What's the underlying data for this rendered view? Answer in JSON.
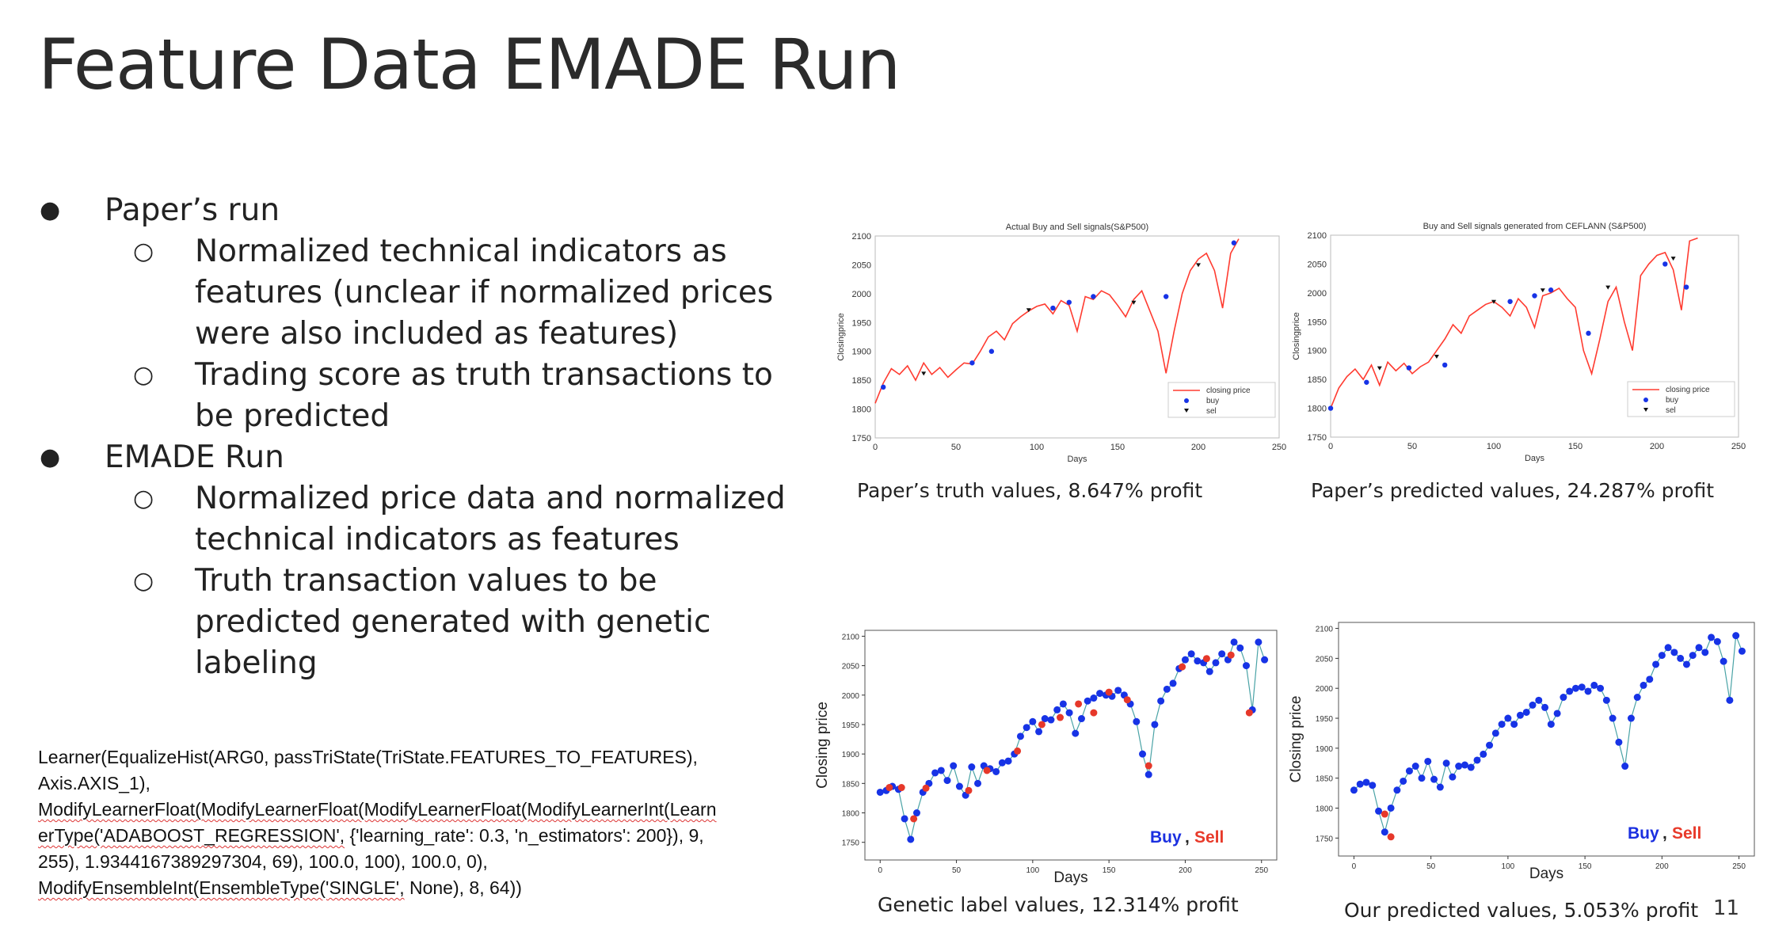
{
  "title": "Feature Data EMADE Run",
  "bullets": [
    {
      "text": "Paper’s run",
      "subs": [
        [
          "Normalized technical indicators as",
          "features (unclear if normalized prices",
          "were also included as features)"
        ],
        [
          "Trading score as truth transactions to",
          "be predicted"
        ]
      ]
    },
    {
      "text": "EMADE Run",
      "subs": [
        [
          "Normalized price data and normalized",
          "technical indicators as features"
        ],
        [
          "Truth transaction values to be",
          "predicted generated with genetic",
          "labeling"
        ]
      ]
    }
  ],
  "code": {
    "line1": "Learner(EqualizeHist(ARG0, passTriState(TriState.FEATURES_TO_FEATURES),",
    "line2": "Axis.AXIS_1),",
    "line3": "ModifyLearnerFloat(ModifyLearnerFloat(ModifyLearnerFloat(ModifyLearnerInt(Learn",
    "line4a": "erType('ADABOOST_REGRESSION',",
    "line4b": " {'learning_rate': 0.3, 'n_estimators': 200}), 9,",
    "line5": "255), 1.9344167389297304, 69), 100.0, 100), 100.0, 0),",
    "line6a": "ModifyEnsembleInt(EnsembleType('SINGLE',",
    "line6b": " None), 8, 64))"
  },
  "captions": {
    "tl": "Paper’s truth values, 8.647% profit",
    "tr": "Paper’s predicted values, 24.287% profit",
    "bl": "Genetic label values, 12.314% profit",
    "br": "Our predicted values, 5.053% profit"
  },
  "page_number": "11",
  "colors": {
    "line": "#ff3b30",
    "buy": "#1733e6",
    "sell": "#e6382a",
    "buy_label": "#1a2fe0",
    "sell_label": "#e83a2a",
    "teal": "#4aa3a6"
  },
  "chart_data": [
    {
      "type": "line",
      "title": "Actual Buy and Sell signals(S&P500)",
      "xlabel": "Days",
      "ylabel": "Closingprice",
      "xlim": [
        0,
        250
      ],
      "ylim": [
        1750,
        2100
      ],
      "xticks": [
        "0",
        "50",
        "100",
        "150",
        "200",
        "250"
      ],
      "yticks": [
        "1750",
        "1800",
        "1850",
        "1900",
        "1950",
        "2000",
        "2050",
        "2100"
      ],
      "legend": [
        "closing price",
        "buy",
        "sel"
      ],
      "legend_position": "lower-right",
      "series": [
        {
          "name": "closing price",
          "x": [
            0,
            5,
            10,
            15,
            20,
            25,
            30,
            35,
            40,
            45,
            50,
            55,
            60,
            65,
            70,
            75,
            80,
            85,
            90,
            95,
            100,
            105,
            110,
            115,
            120,
            125,
            130,
            135,
            140,
            145,
            150,
            155,
            160,
            165,
            170,
            175,
            180,
            185,
            190,
            195,
            200,
            205,
            210,
            215,
            220,
            225
          ],
          "y": [
            1810,
            1845,
            1870,
            1860,
            1875,
            1850,
            1880,
            1860,
            1872,
            1855,
            1868,
            1880,
            1878,
            1900,
            1925,
            1935,
            1920,
            1948,
            1960,
            1970,
            1978,
            1982,
            1965,
            1988,
            1980,
            1935,
            1995,
            1990,
            2005,
            1998,
            1980,
            1960,
            1990,
            2005,
            1970,
            1935,
            1862,
            1935,
            2000,
            2040,
            2060,
            2070,
            2040,
            1975,
            2070,
            2095
          ]
        }
      ],
      "buy": [
        [
          5,
          1838
        ],
        [
          60,
          1880
        ],
        [
          72,
          1900
        ],
        [
          110,
          1975
        ],
        [
          120,
          1985
        ],
        [
          135,
          1995
        ],
        [
          180,
          1995
        ],
        [
          222,
          2088
        ]
      ],
      "sell": [
        [
          30,
          1862
        ],
        [
          95,
          1972
        ],
        [
          160,
          1985
        ],
        [
          200,
          2050
        ]
      ]
    },
    {
      "type": "line",
      "title": "Buy and Sell signals generated from CEFLANN (S&P500)",
      "xlabel": "Days",
      "ylabel": "Closingprice",
      "xlim": [
        0,
        250
      ],
      "ylim": [
        1750,
        2100
      ],
      "xticks": [
        "0",
        "50",
        "100",
        "150",
        "200",
        "250"
      ],
      "yticks": [
        "1750",
        "1800",
        "1850",
        "1900",
        "1950",
        "2000",
        "2050",
        "2100"
      ],
      "legend": [
        "closing price",
        "buy",
        "sel"
      ],
      "legend_position": "lower-right",
      "series": [
        {
          "name": "closing price",
          "x": [
            0,
            5,
            10,
            15,
            20,
            25,
            30,
            35,
            40,
            45,
            50,
            55,
            60,
            65,
            70,
            75,
            80,
            85,
            90,
            95,
            100,
            105,
            110,
            115,
            120,
            125,
            130,
            135,
            140,
            145,
            150,
            155,
            160,
            165,
            170,
            175,
            180,
            185,
            190,
            195,
            200,
            205,
            210,
            215,
            220,
            225
          ],
          "y": [
            1800,
            1835,
            1855,
            1868,
            1850,
            1875,
            1840,
            1880,
            1865,
            1878,
            1860,
            1872,
            1880,
            1900,
            1920,
            1945,
            1930,
            1960,
            1970,
            1980,
            1985,
            1975,
            1960,
            1990,
            1975,
            1940,
            1995,
            2000,
            2008,
            1990,
            1975,
            1900,
            1860,
            1920,
            1985,
            2010,
            1950,
            1900,
            2030,
            2050,
            2065,
            2070,
            2040,
            1970,
            2090,
            2095
          ]
        }
      ],
      "buy": [
        [
          0,
          1800
        ],
        [
          22,
          1845
        ],
        [
          48,
          1870
        ],
        [
          70,
          1875
        ],
        [
          110,
          1985
        ],
        [
          125,
          1995
        ],
        [
          135,
          2005
        ],
        [
          158,
          1930
        ],
        [
          205,
          2050
        ],
        [
          218,
          2010
        ]
      ],
      "sell": [
        [
          30,
          1870
        ],
        [
          65,
          1890
        ],
        [
          100,
          1985
        ],
        [
          130,
          2005
        ],
        [
          170,
          2010
        ],
        [
          210,
          2060
        ]
      ]
    },
    {
      "type": "scatter",
      "title": "",
      "xlabel": "Days",
      "ylabel": "Closing price",
      "xlim": [
        -10,
        260
      ],
      "ylim": [
        1720,
        2110
      ],
      "xticks": [
        "0",
        "50",
        "100",
        "150",
        "200",
        "250"
      ],
      "yticks": [
        "1750",
        "1800",
        "1850",
        "1900",
        "1950",
        "2000",
        "2050",
        "2100"
      ],
      "annotation": {
        "buy": "Buy",
        "comma": ",",
        "sell": "Sell"
      },
      "series": [
        {
          "name": "Buy",
          "x": [
            0,
            4,
            8,
            12,
            16,
            20,
            24,
            28,
            32,
            36,
            40,
            44,
            48,
            52,
            56,
            60,
            64,
            68,
            72,
            76,
            80,
            84,
            88,
            92,
            96,
            100,
            104,
            108,
            112,
            116,
            120,
            124,
            128,
            132,
            136,
            140,
            144,
            148,
            152,
            156,
            160,
            164,
            168,
            172,
            176,
            180,
            184,
            188,
            192,
            196,
            200,
            204,
            208,
            212,
            216,
            220,
            224,
            228,
            232,
            236,
            240,
            244,
            248,
            252
          ],
          "y": [
            1835,
            1838,
            1845,
            1840,
            1790,
            1755,
            1800,
            1835,
            1850,
            1868,
            1872,
            1855,
            1880,
            1845,
            1830,
            1878,
            1850,
            1880,
            1875,
            1870,
            1885,
            1888,
            1900,
            1930,
            1945,
            1955,
            1938,
            1960,
            1958,
            1975,
            1985,
            1970,
            1935,
            1960,
            1990,
            1995,
            2003,
            2000,
            1998,
            2008,
            2000,
            1985,
            1955,
            1900,
            1865,
            1950,
            1990,
            2010,
            2020,
            2045,
            2060,
            2070,
            2058,
            2055,
            2040,
            2055,
            2070,
            2060,
            2090,
            2080,
            2050,
            1975,
            2090,
            2060
          ]
        }
      ],
      "sell": [
        [
          6,
          1843
        ],
        [
          14,
          1843
        ],
        [
          22,
          1790
        ],
        [
          30,
          1842
        ],
        [
          58,
          1838
        ],
        [
          70,
          1872
        ],
        [
          90,
          1905
        ],
        [
          106,
          1950
        ],
        [
          118,
          1962
        ],
        [
          130,
          1985
        ],
        [
          140,
          1970
        ],
        [
          150,
          2005
        ],
        [
          162,
          1992
        ],
        [
          176,
          1880
        ],
        [
          198,
          2048
        ],
        [
          214,
          2062
        ],
        [
          230,
          2068
        ],
        [
          242,
          1970
        ]
      ]
    },
    {
      "type": "scatter",
      "title": "",
      "xlabel": "Days",
      "ylabel": "Closing price",
      "xlim": [
        -10,
        260
      ],
      "ylim": [
        1720,
        2110
      ],
      "xticks": [
        "0",
        "50",
        "100",
        "150",
        "200",
        "250"
      ],
      "yticks": [
        "1750",
        "1800",
        "1850",
        "1900",
        "1950",
        "2000",
        "2050",
        "2100"
      ],
      "annotation": {
        "buy": "Buy",
        "comma": ",",
        "sell": "Sell"
      },
      "series": [
        {
          "name": "Buy",
          "x": [
            0,
            4,
            8,
            12,
            16,
            20,
            24,
            28,
            32,
            36,
            40,
            44,
            48,
            52,
            56,
            60,
            64,
            68,
            72,
            76,
            80,
            84,
            88,
            92,
            96,
            100,
            104,
            108,
            112,
            116,
            120,
            124,
            128,
            132,
            136,
            140,
            144,
            148,
            152,
            156,
            160,
            164,
            168,
            172,
            176,
            180,
            184,
            188,
            192,
            196,
            200,
            204,
            208,
            212,
            216,
            220,
            224,
            228,
            232,
            236,
            240,
            244,
            248,
            252
          ],
          "y": [
            1830,
            1840,
            1843,
            1838,
            1795,
            1760,
            1800,
            1830,
            1845,
            1862,
            1870,
            1850,
            1878,
            1848,
            1835,
            1875,
            1852,
            1870,
            1872,
            1868,
            1880,
            1890,
            1905,
            1925,
            1940,
            1950,
            1940,
            1955,
            1960,
            1972,
            1980,
            1968,
            1940,
            1958,
            1985,
            1995,
            2000,
            2002,
            1995,
            2005,
            2000,
            1980,
            1950,
            1910,
            1870,
            1950,
            1985,
            2005,
            2015,
            2040,
            2055,
            2068,
            2060,
            2050,
            2040,
            2055,
            2068,
            2060,
            2085,
            2078,
            2045,
            1980,
            2088,
            2062
          ]
        }
      ],
      "sell": [
        [
          20,
          1790
        ],
        [
          24,
          1752
        ]
      ]
    }
  ]
}
